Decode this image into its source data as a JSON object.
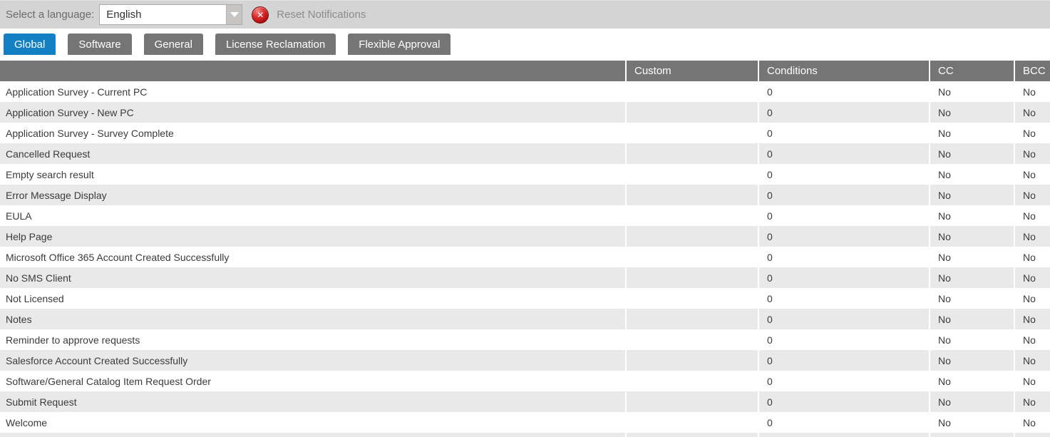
{
  "topbar": {
    "language_label": "Select a language:",
    "language_value": "English",
    "reset_button_label": "Reset Notifications"
  },
  "tabs": [
    {
      "label": "Global",
      "active": true
    },
    {
      "label": "Software",
      "active": false
    },
    {
      "label": "General",
      "active": false
    },
    {
      "label": "License Reclamation",
      "active": false
    },
    {
      "label": "Flexible Approval",
      "active": false
    }
  ],
  "table": {
    "columns": [
      {
        "key": "name",
        "label": ""
      },
      {
        "key": "custom",
        "label": "Custom"
      },
      {
        "key": "conditions",
        "label": "Conditions"
      },
      {
        "key": "cc",
        "label": "CC"
      },
      {
        "key": "bcc",
        "label": "BCC"
      }
    ],
    "rows": [
      {
        "name": "Application Survey - Current PC",
        "custom": "",
        "conditions": "0",
        "cc": "No",
        "bcc": "No"
      },
      {
        "name": "Application Survey - New PC",
        "custom": "",
        "conditions": "0",
        "cc": "No",
        "bcc": "No"
      },
      {
        "name": "Application Survey - Survey Complete",
        "custom": "",
        "conditions": "0",
        "cc": "No",
        "bcc": "No"
      },
      {
        "name": "Cancelled Request",
        "custom": "",
        "conditions": "0",
        "cc": "No",
        "bcc": "No"
      },
      {
        "name": "Empty search result",
        "custom": "",
        "conditions": "0",
        "cc": "No",
        "bcc": "No"
      },
      {
        "name": "Error Message Display",
        "custom": "",
        "conditions": "0",
        "cc": "No",
        "bcc": "No"
      },
      {
        "name": "EULA",
        "custom": "",
        "conditions": "0",
        "cc": "No",
        "bcc": "No"
      },
      {
        "name": "Help Page",
        "custom": "",
        "conditions": "0",
        "cc": "No",
        "bcc": "No"
      },
      {
        "name": "Microsoft Office 365 Account Created Successfully",
        "custom": "",
        "conditions": "0",
        "cc": "No",
        "bcc": "No"
      },
      {
        "name": "No SMS Client",
        "custom": "",
        "conditions": "0",
        "cc": "No",
        "bcc": "No"
      },
      {
        "name": "Not Licensed",
        "custom": "",
        "conditions": "0",
        "cc": "No",
        "bcc": "No"
      },
      {
        "name": "Notes",
        "custom": "",
        "conditions": "0",
        "cc": "No",
        "bcc": "No"
      },
      {
        "name": "Reminder to approve requests",
        "custom": "",
        "conditions": "0",
        "cc": "No",
        "bcc": "No"
      },
      {
        "name": "Salesforce Account Created Successfully",
        "custom": "",
        "conditions": "0",
        "cc": "No",
        "bcc": "No"
      },
      {
        "name": "Software/General Catalog Item Request Order",
        "custom": "",
        "conditions": "0",
        "cc": "No",
        "bcc": "No"
      },
      {
        "name": "Submit Request",
        "custom": "",
        "conditions": "0",
        "cc": "No",
        "bcc": "No"
      },
      {
        "name": "Welcome",
        "custom": "",
        "conditions": "0",
        "cc": "No",
        "bcc": "No"
      }
    ]
  },
  "icons": {
    "reset": "red-circle-x",
    "dropdown": "triangle-down",
    "reset_glyph": "✕"
  },
  "colors": {
    "active_tab_blue": "#1480c4",
    "inactive_tab_gray": "#757575",
    "header_bg": "#757575",
    "row_alt_bg": "#e9e9e9",
    "topbar_bg": "#d4d4d4",
    "reset_icon_red": "#b50f0f"
  }
}
